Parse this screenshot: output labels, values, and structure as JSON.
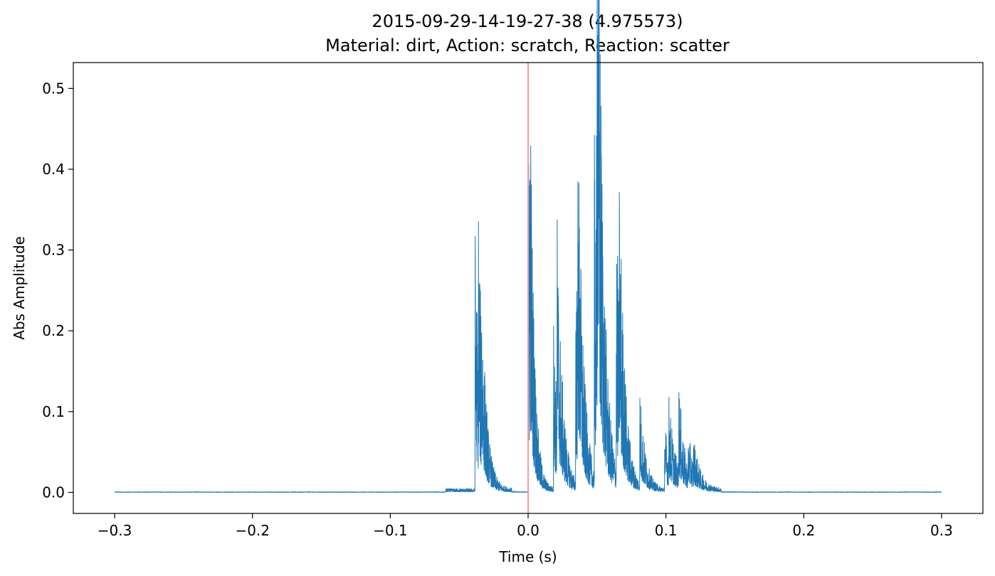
{
  "chart_data": {
    "type": "line",
    "title": "2015-09-29-14-19-27-38 (4.975573)",
    "subtitle": "Material: dirt, Action: scratch, Reaction: scatter",
    "xlabel": "Time (s)",
    "ylabel": "Abs Amplitude",
    "xlim": [
      -0.33,
      0.33
    ],
    "ylim": [
      -0.026,
      0.532
    ],
    "x_ticks": [
      -0.3,
      -0.2,
      -0.1,
      0.0,
      0.1,
      0.2,
      0.3
    ],
    "x_tick_labels": [
      "−0.3",
      "−0.2",
      "−0.1",
      "0.0",
      "0.1",
      "0.2",
      "0.3"
    ],
    "y_ticks": [
      0.0,
      0.1,
      0.2,
      0.3,
      0.4,
      0.5
    ],
    "y_tick_labels": [
      "0.0",
      "0.1",
      "0.2",
      "0.3",
      "0.4",
      "0.5"
    ],
    "grid": false,
    "event_marker": {
      "x": 0.0,
      "color": "#ff9a9a"
    },
    "series_color": "#1f77b4",
    "bursts": [
      {
        "t": -0.0385,
        "a": 0.34,
        "decay": 0.004
      },
      {
        "t": -0.036,
        "a": 0.19,
        "decay": 0.003
      },
      {
        "t": -0.034,
        "a": 0.1,
        "decay": 0.004
      },
      {
        "t": 0.0,
        "a": 0.51,
        "decay": 0.003
      },
      {
        "t": 0.001,
        "a": 0.28,
        "decay": 0.003
      },
      {
        "t": 0.0185,
        "a": 0.218,
        "decay": 0.004
      },
      {
        "t": 0.021,
        "a": 0.241,
        "decay": 0.004
      },
      {
        "t": 0.0345,
        "a": 0.323,
        "decay": 0.004
      },
      {
        "t": 0.036,
        "a": 0.272,
        "decay": 0.004
      },
      {
        "t": 0.048,
        "a": 0.425,
        "decay": 0.004
      },
      {
        "t": 0.0495,
        "a": 0.455,
        "decay": 0.004
      },
      {
        "t": 0.05,
        "a": 0.385,
        "decay": 0.004
      },
      {
        "t": 0.064,
        "a": 0.337,
        "decay": 0.004
      },
      {
        "t": 0.066,
        "a": 0.22,
        "decay": 0.004
      },
      {
        "t": 0.081,
        "a": 0.128,
        "decay": 0.004
      },
      {
        "t": 0.099,
        "a": 0.087,
        "decay": 0.005
      },
      {
        "t": 0.102,
        "a": 0.074,
        "decay": 0.005
      },
      {
        "t": 0.109,
        "a": 0.124,
        "decay": 0.004
      },
      {
        "t": 0.116,
        "a": 0.05,
        "decay": 0.005
      },
      {
        "t": 0.12,
        "a": 0.035,
        "decay": 0.005
      }
    ]
  }
}
